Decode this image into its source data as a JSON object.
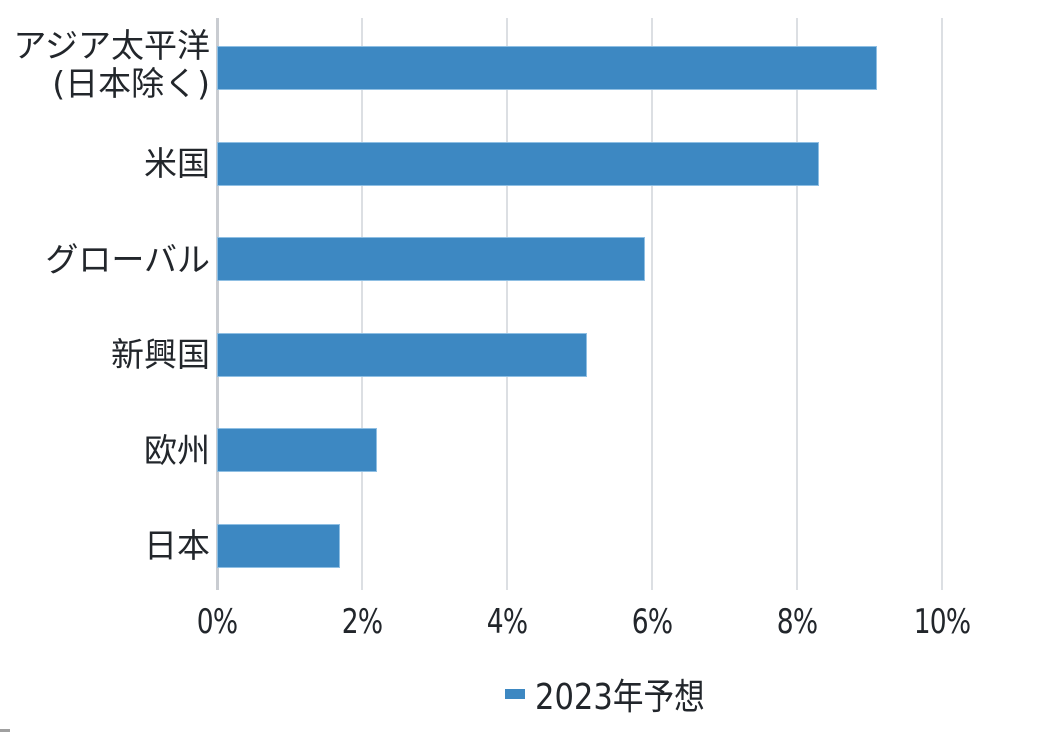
{
  "chart_data": {
    "type": "bar",
    "orientation": "horizontal",
    "title": "",
    "xlabel": "",
    "ylabel": "",
    "categories": [
      "アジア太平洋(日本除く)",
      "米国",
      "グローバル",
      "新興国",
      "欧州",
      "日本"
    ],
    "series": [
      {
        "name": "2023年予想",
        "color": "#3d88c2",
        "values": [
          9.1,
          8.3,
          5.9,
          5.1,
          2.2,
          1.7
        ]
      }
    ],
    "xlim": [
      0,
      10
    ],
    "xticks": [
      "0%",
      "2%",
      "4%",
      "6%",
      "8%",
      "10%"
    ],
    "grid": true,
    "legend_position": "bottom"
  },
  "labels": {
    "cat0_line1": "アジア太平洋",
    "cat0_line2": "(日本除く)",
    "cat1": "米国",
    "cat2": "グローバル",
    "cat3": "新興国",
    "cat4": "欧州",
    "cat5": "日本"
  },
  "ticks": [
    "0%",
    "2%",
    "4%",
    "6%",
    "8%",
    "10%"
  ],
  "legend": {
    "label": "2023年予想"
  }
}
